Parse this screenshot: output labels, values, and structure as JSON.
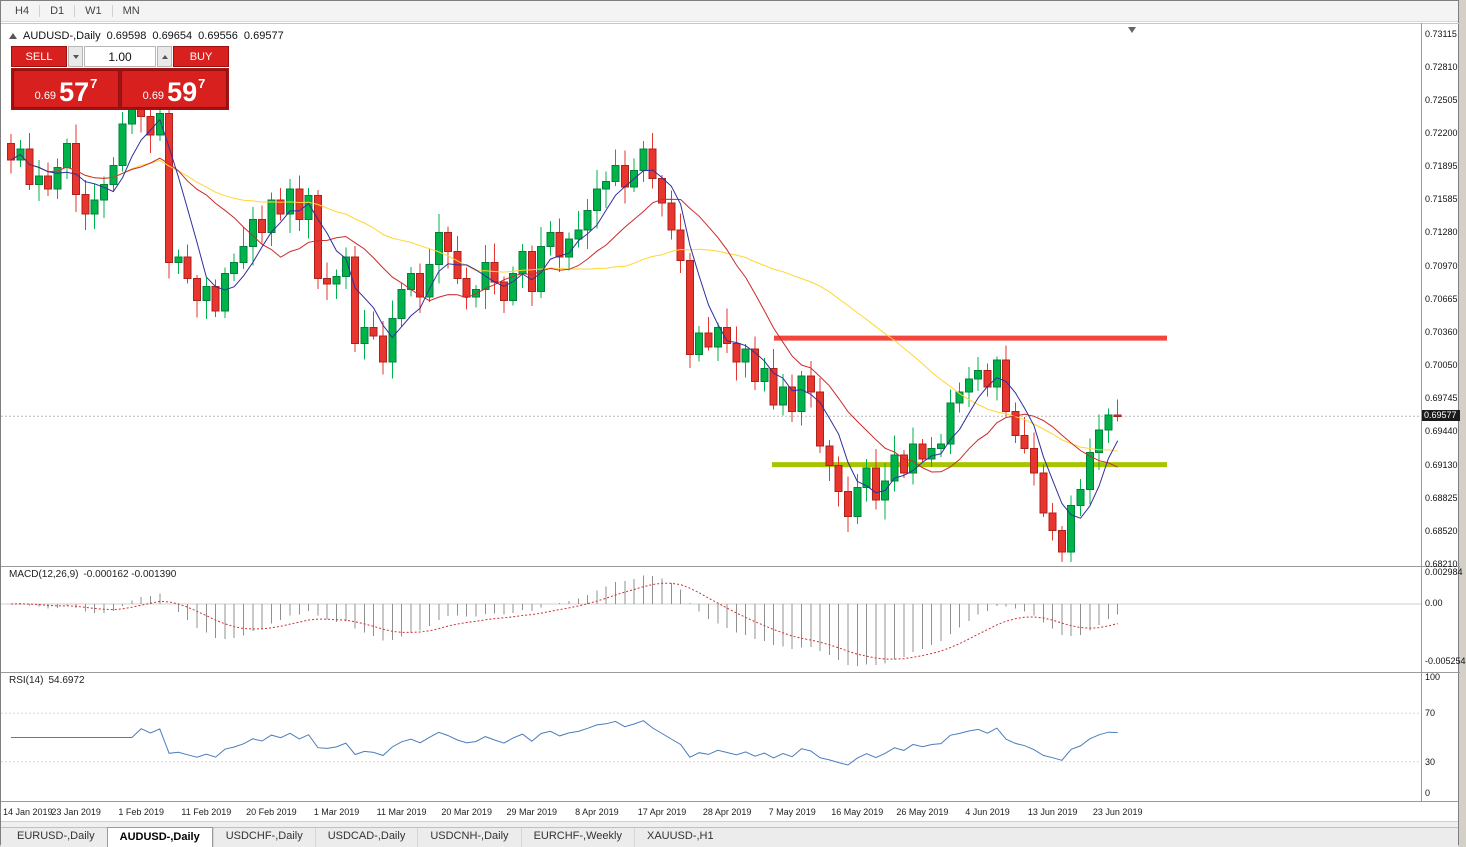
{
  "toolbar": {
    "timeframes": [
      "H4",
      "D1",
      "W1",
      "MN"
    ]
  },
  "chart": {
    "header": {
      "symbol": "AUDUSD-,Daily",
      "open": "0.69598",
      "high": "0.69654",
      "low": "0.69556",
      "close": "0.69577"
    },
    "trade_panel": {
      "sell_label": "SELL",
      "buy_label": "BUY",
      "volume": "1.00",
      "sell_price_big": "0.69",
      "sell_price_pips": "57",
      "sell_price_sup": "7",
      "buy_price_big": "0.69",
      "buy_price_pips": "59",
      "buy_price_sup": "7"
    },
    "current_price": "0.69577"
  },
  "macd_panel": {
    "name": "MACD(12,26,9)",
    "values_text": "-0.000162 -0.001390",
    "axis_labels": [
      "0.002984",
      "0.00",
      "-0.005254"
    ]
  },
  "rsi_panel": {
    "name": "RSI(14)",
    "value_text": "54.6972",
    "axis_labels": [
      "100",
      "70",
      "30",
      "0"
    ]
  },
  "tabs": [
    "EURUSD-,Daily",
    "AUDUSD-,Daily",
    "USDCHF-,Daily",
    "USDCAD-,Daily",
    "USDCNH-,Daily",
    "EURCHF-,Weekly",
    "XAUUSD-,H1"
  ],
  "active_tab": "AUDUSD-,Daily",
  "colors": {
    "candle_up": "#00b24a",
    "candle_down": "#e8352e",
    "ma_fast": "#2f2f9e",
    "ma_mid": "#cc2a2a",
    "ma_slow": "#ffd633",
    "resistance": "#f4443e",
    "support": "#a8c400",
    "macd_hist": "#909090",
    "macd_signal": "#cc3333",
    "rsi_line": "#4a7ebb",
    "trade_red": "#d8201f"
  },
  "chart_data": {
    "type": "candlestick",
    "symbol": "AUDUSD",
    "timeframe": "Daily",
    "title": "AUDUSD-,Daily",
    "ylim": [
      0.6821,
      0.73115
    ],
    "y_tick_labels": [
      "0.73115",
      "0.72810",
      "0.72505",
      "0.72200",
      "0.71895",
      "0.71585",
      "0.71280",
      "0.70970",
      "0.70665",
      "0.70360",
      "0.70050",
      "0.69745",
      "0.69440",
      "0.69130",
      "0.68825",
      "0.68520",
      "0.68210"
    ],
    "x_tick_labels": [
      "14 Jan 2019",
      "23 Jan 2019",
      "1 Feb 2019",
      "11 Feb 2019",
      "20 Feb 2019",
      "1 Mar 2019",
      "11 Mar 2019",
      "20 Mar 2019",
      "29 Mar 2019",
      "8 Apr 2019",
      "17 Apr 2019",
      "28 Apr 2019",
      "7 May 2019",
      "16 May 2019",
      "26 May 2019",
      "4 Jun 2019",
      "13 Jun 2019",
      "23 Jun 2019"
    ],
    "first_open": 0.721,
    "closes": [
      0.7195,
      0.7205,
      0.7172,
      0.718,
      0.7168,
      0.7188,
      0.721,
      0.7163,
      0.7145,
      0.7158,
      0.7172,
      0.719,
      0.7228,
      0.7242,
      0.7235,
      0.7218,
      0.7238,
      0.71,
      0.7105,
      0.7085,
      0.7065,
      0.7078,
      0.7055,
      0.709,
      0.71,
      0.7115,
      0.714,
      0.7128,
      0.7158,
      0.7145,
      0.7168,
      0.714,
      0.7162,
      0.7085,
      0.708,
      0.7087,
      0.7105,
      0.7025,
      0.704,
      0.7032,
      0.7008,
      0.7048,
      0.7075,
      0.709,
      0.7068,
      0.7098,
      0.7128,
      0.711,
      0.7085,
      0.7068,
      0.7075,
      0.71,
      0.7082,
      0.7065,
      0.709,
      0.711,
      0.7073,
      0.7115,
      0.7128,
      0.7105,
      0.7122,
      0.713,
      0.7148,
      0.7168,
      0.7175,
      0.719,
      0.717,
      0.7185,
      0.7205,
      0.7178,
      0.7155,
      0.713,
      0.7102,
      0.7015,
      0.7035,
      0.7022,
      0.704,
      0.7025,
      0.7008,
      0.702,
      0.699,
      0.7002,
      0.6968,
      0.6985,
      0.6962,
      0.6995,
      0.698,
      0.693,
      0.6912,
      0.6888,
      0.6865,
      0.6892,
      0.691,
      0.688,
      0.6898,
      0.6922,
      0.6905,
      0.6932,
      0.6918,
      0.6928,
      0.6932,
      0.697,
      0.698,
      0.6992,
      0.7,
      0.6985,
      0.701,
      0.6962,
      0.694,
      0.6928,
      0.6905,
      0.6868,
      0.6852,
      0.6832,
      0.6875,
      0.689,
      0.6924,
      0.6945,
      0.6959,
      0.69577
    ],
    "last_bar": {
      "open": 0.69598,
      "high": 0.69654,
      "low": 0.69556,
      "close": 0.69577
    },
    "levels": {
      "resistance": 0.703,
      "support": 0.6913
    },
    "indicators": {
      "macd": {
        "label": "MACD(12,26,9)",
        "macd_value": -0.000162,
        "signal_value": -0.00139,
        "scale_labels": [
          "0.002984",
          "0.00",
          "-0.005254"
        ]
      },
      "rsi": {
        "label": "RSI(14)",
        "value": 54.6972,
        "scale_labels": [
          "100",
          "70",
          "30",
          "0"
        ]
      }
    }
  }
}
